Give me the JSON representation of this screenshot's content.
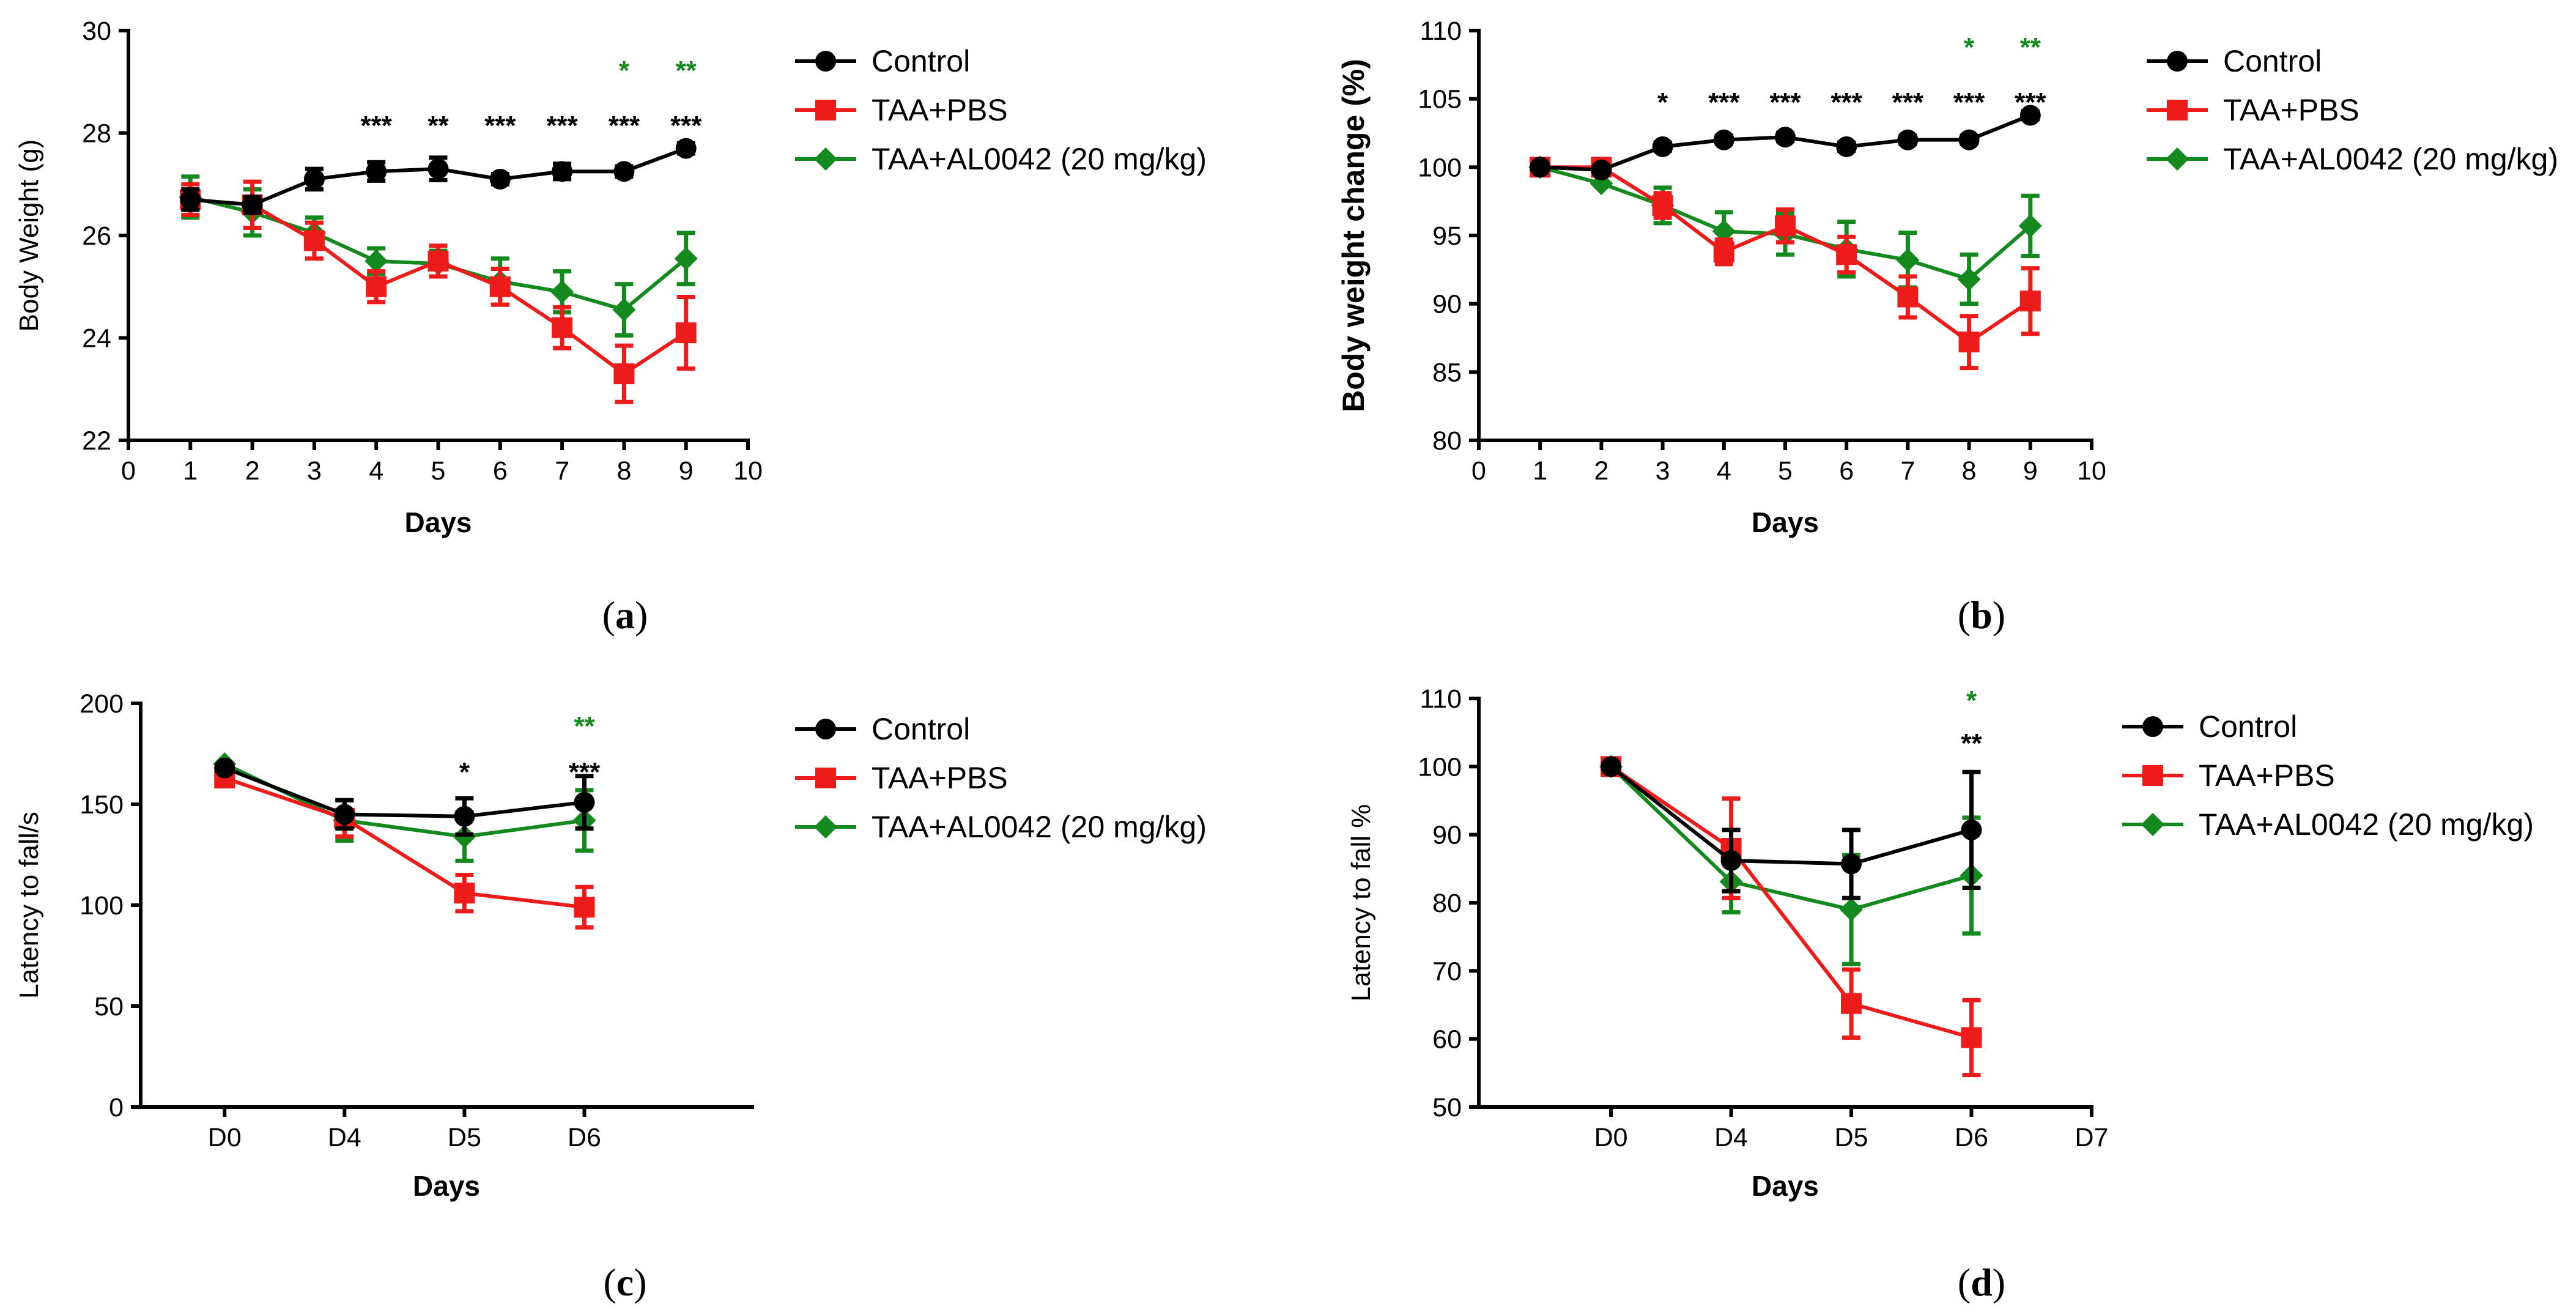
{
  "colors": {
    "control": "#000000",
    "taa_pbs": "#ee1b1b",
    "taa_al0042": "#14891e"
  },
  "panel_labels": {
    "a": "a",
    "b": "b",
    "c": "c",
    "d": "d"
  },
  "chart_data": [
    {
      "id": "a",
      "type": "line",
      "xlabel": "Days",
      "ylabel": "Body Weight (g)",
      "xlim": [
        0,
        10
      ],
      "ylim": [
        22,
        30
      ],
      "xticks": [
        0,
        1,
        2,
        3,
        4,
        5,
        6,
        7,
        8,
        9,
        10
      ],
      "xticklabels": [
        "0",
        "1",
        "2",
        "3",
        "4",
        "5",
        "6",
        "7",
        "8",
        "9",
        "10"
      ],
      "yticks": [
        22,
        24,
        26,
        28,
        30
      ],
      "yticklabels": [
        "22",
        "24",
        "26",
        "28",
        "30"
      ],
      "legend": [
        "Control",
        "TAA+PBS",
        "TAA+AL0042 (20 mg/kg)"
      ],
      "series": [
        {
          "name": "Control",
          "color": "#000000",
          "marker": "circle",
          "x": [
            1,
            2,
            3,
            4,
            5,
            6,
            7,
            8,
            9
          ],
          "values": [
            26.7,
            26.6,
            27.1,
            27.25,
            27.3,
            27.1,
            27.25,
            27.25,
            27.7
          ],
          "errors": [
            0.2,
            0.15,
            0.2,
            0.18,
            0.22,
            0.1,
            0.15,
            0.1,
            0.1
          ]
        },
        {
          "name": "TAA+PBS",
          "color": "#ee1b1b",
          "marker": "square",
          "x": [
            1,
            2,
            3,
            4,
            5,
            6,
            7,
            8,
            9
          ],
          "values": [
            26.7,
            26.6,
            25.9,
            25.0,
            25.5,
            25.0,
            24.2,
            23.3,
            24.1
          ],
          "errors": [
            0.3,
            0.45,
            0.35,
            0.3,
            0.3,
            0.35,
            0.4,
            0.55,
            0.7
          ]
        },
        {
          "name": "TAA+AL0042 (20 mg/kg)",
          "color": "#14891e",
          "marker": "diamond",
          "x": [
            1,
            2,
            3,
            4,
            5,
            6,
            7,
            8,
            9
          ],
          "values": [
            26.75,
            26.45,
            26.05,
            25.5,
            25.45,
            25.1,
            24.9,
            24.55,
            25.55
          ],
          "errors": [
            0.4,
            0.45,
            0.3,
            0.25,
            0.25,
            0.45,
            0.4,
            0.5,
            0.5
          ]
        }
      ],
      "annotations": [
        {
          "x": 4,
          "text": "***",
          "color": "#000000",
          "row": 0
        },
        {
          "x": 5,
          "text": "**",
          "color": "#000000",
          "row": 0
        },
        {
          "x": 6,
          "text": "***",
          "color": "#000000",
          "row": 0
        },
        {
          "x": 7,
          "text": "***",
          "color": "#000000",
          "row": 0
        },
        {
          "x": 8,
          "text": "***",
          "color": "#000000",
          "row": 0
        },
        {
          "x": 8,
          "text": "*",
          "color": "#14891e",
          "row": 1
        },
        {
          "x": 9,
          "text": "***",
          "color": "#000000",
          "row": 0
        },
        {
          "x": 9,
          "text": "**",
          "color": "#14891e",
          "row": 1
        }
      ]
    },
    {
      "id": "b",
      "type": "line",
      "xlabel": "Days",
      "ylabel": "Body weight change (%)",
      "xlim": [
        0,
        10
      ],
      "ylim": [
        80,
        110
      ],
      "xticks": [
        0,
        1,
        2,
        3,
        4,
        5,
        6,
        7,
        8,
        9,
        10
      ],
      "xticklabels": [
        "0",
        "1",
        "2",
        "3",
        "4",
        "5",
        "6",
        "7",
        "8",
        "9",
        "10"
      ],
      "yticks": [
        80,
        85,
        90,
        95,
        100,
        105,
        110
      ],
      "yticklabels": [
        "80",
        "85",
        "90",
        "95",
        "100",
        "105",
        "110"
      ],
      "legend": [
        "Control",
        "TAA+PBS",
        "TAA+AL0042 (20 mg/kg)"
      ],
      "series": [
        {
          "name": "Control",
          "color": "#000000",
          "marker": "circle",
          "x": [
            1,
            2,
            3,
            4,
            5,
            6,
            7,
            8,
            9
          ],
          "values": [
            100,
            99.8,
            101.5,
            102,
            102.2,
            101.5,
            102,
            102,
            103.8
          ],
          "errors": [
            0,
            0,
            0.3,
            0.3,
            0.3,
            0.3,
            0.3,
            0.3,
            0.3
          ]
        },
        {
          "name": "TAA+PBS",
          "color": "#ee1b1b",
          "marker": "square",
          "x": [
            1,
            2,
            3,
            4,
            5,
            6,
            7,
            8,
            9
          ],
          "values": [
            100,
            100,
            97.2,
            93.8,
            95.7,
            93.6,
            90.5,
            87.2,
            90.2
          ],
          "errors": [
            0,
            0,
            0.9,
            0.9,
            1.2,
            1.3,
            1.5,
            1.9,
            2.4
          ]
        },
        {
          "name": "TAA+AL0042 (20 mg/kg)",
          "color": "#14891e",
          "marker": "diamond",
          "x": [
            1,
            2,
            3,
            4,
            5,
            6,
            7,
            8,
            9
          ],
          "values": [
            100,
            98.8,
            97.2,
            95.3,
            95.1,
            94,
            93.2,
            91.8,
            95.7
          ],
          "errors": [
            0,
            0,
            1.3,
            1.4,
            1.5,
            2,
            2,
            1.8,
            2.2
          ]
        }
      ],
      "annotations": [
        {
          "x": 3,
          "text": "*",
          "color": "#000000",
          "row": 0
        },
        {
          "x": 4,
          "text": "***",
          "color": "#000000",
          "row": 0
        },
        {
          "x": 5,
          "text": "***",
          "color": "#000000",
          "row": 0
        },
        {
          "x": 6,
          "text": "***",
          "color": "#000000",
          "row": 0
        },
        {
          "x": 7,
          "text": "***",
          "color": "#000000",
          "row": 0
        },
        {
          "x": 8,
          "text": "***",
          "color": "#000000",
          "row": 0
        },
        {
          "x": 8,
          "text": "*",
          "color": "#14891e",
          "row": 1
        },
        {
          "x": 9,
          "text": "***",
          "color": "#000000",
          "row": 0
        },
        {
          "x": 9,
          "text": "**",
          "color": "#14891e",
          "row": 1
        }
      ]
    },
    {
      "id": "c",
      "type": "line",
      "xlabel": "Days",
      "ylabel": "Latency to fall/s",
      "xlim": [
        -0.7,
        4.4
      ],
      "ylim": [
        0,
        200
      ],
      "xticks": [
        0,
        1,
        2,
        3
      ],
      "xticklabels": [
        "D0",
        "D4",
        "D5",
        "D6"
      ],
      "yticks": [
        0,
        50,
        100,
        150,
        200
      ],
      "yticklabels": [
        "0",
        "50",
        "100",
        "150",
        "200"
      ],
      "legend": [
        "Control",
        "TAA+PBS",
        "TAA+AL0042 (20 mg/kg)"
      ],
      "series": [
        {
          "name": "Control",
          "color": "#000000",
          "marker": "circle",
          "x": [
            0,
            1,
            2,
            3
          ],
          "values": [
            168,
            145,
            144,
            151
          ],
          "errors": [
            0,
            7,
            9,
            13
          ]
        },
        {
          "name": "TAA+PBS",
          "color": "#ee1b1b",
          "marker": "square",
          "x": [
            0,
            1,
            2,
            3
          ],
          "values": [
            163,
            143,
            106,
            99
          ],
          "errors": [
            0,
            9,
            9,
            10
          ]
        },
        {
          "name": "TAA+AL0042 (20 mg/kg)",
          "color": "#14891e",
          "marker": "diamond",
          "x": [
            0,
            1,
            2,
            3
          ],
          "values": [
            170,
            142,
            134,
            142
          ],
          "errors": [
            0,
            10,
            12,
            15
          ]
        }
      ],
      "annotations": [
        {
          "x": 2,
          "text": "*",
          "color": "#000000",
          "row": 0
        },
        {
          "x": 3,
          "text": "***",
          "color": "#000000",
          "row": 0
        },
        {
          "x": 3,
          "text": "**",
          "color": "#14891e",
          "row": 1
        }
      ]
    },
    {
      "id": "d",
      "type": "line",
      "xlabel": "Days",
      "ylabel": "Latency to fall %",
      "xlim": [
        -1.1,
        4
      ],
      "ylim": [
        50,
        110
      ],
      "xticks": [
        0,
        1,
        2,
        3,
        4
      ],
      "xticklabels": [
        "D0",
        "D4",
        "D5",
        "D6",
        "D7"
      ],
      "yticks": [
        50,
        60,
        70,
        80,
        90,
        100,
        110
      ],
      "yticklabels": [
        "50",
        "60",
        "70",
        "80",
        "90",
        "100",
        "110"
      ],
      "legend": [
        "Control",
        "TAA+PBS",
        "TAA+AL0042 (20 mg/kg)"
      ],
      "series": [
        {
          "name": "Control",
          "color": "#000000",
          "marker": "circle",
          "x": [
            0,
            1,
            2,
            3
          ],
          "values": [
            100,
            86.2,
            85.7,
            90.7
          ],
          "errors": [
            0,
            4.5,
            5,
            8.5
          ]
        },
        {
          "name": "TAA+PBS",
          "color": "#ee1b1b",
          "marker": "square",
          "x": [
            0,
            1,
            2,
            3
          ],
          "values": [
            100,
            88,
            65.2,
            60.2
          ],
          "errors": [
            0,
            7.3,
            5,
            5.5
          ]
        },
        {
          "name": "TAA+AL0042 (20 mg/kg)",
          "color": "#14891e",
          "marker": "diamond",
          "x": [
            0,
            1,
            2,
            3
          ],
          "values": [
            100,
            83.1,
            79,
            84
          ],
          "errors": [
            0,
            4.5,
            8,
            8.5
          ]
        }
      ],
      "annotations": [
        {
          "x": 3,
          "text": "**",
          "color": "#000000",
          "row": 0
        },
        {
          "x": 3,
          "text": "*",
          "color": "#14891e",
          "row": 1
        }
      ]
    }
  ]
}
